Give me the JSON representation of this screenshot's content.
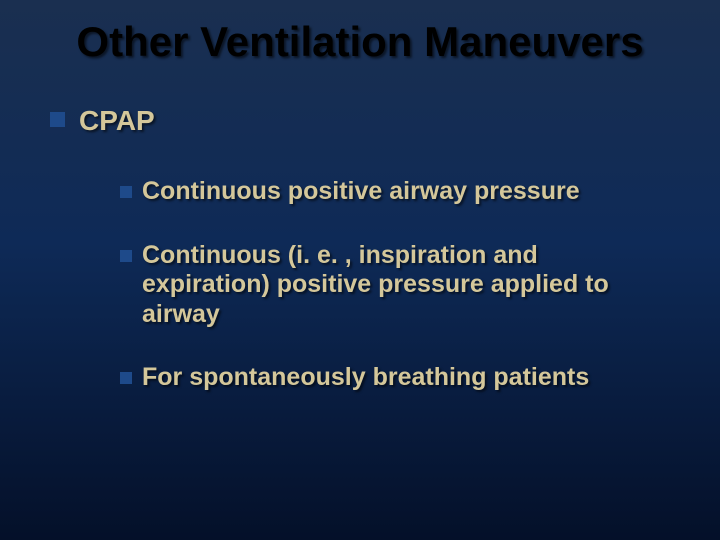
{
  "background": {
    "gradient_top": "#1a2f50",
    "gradient_mid": "#0e2a57",
    "gradient_bottom": "#041029"
  },
  "title": {
    "text": "Other Ventilation Maneuvers",
    "color": "#000000",
    "fontsize": 42
  },
  "bullet_colors": {
    "level1": "#1e4a8a",
    "level2": "#1e4a8a"
  },
  "text_colors": {
    "level1": "#d4c79a",
    "level2": "#d4c79a"
  },
  "font_sizes": {
    "level1": 28,
    "level2": 25
  },
  "bullet_sizes": {
    "level1": 15,
    "level2": 12
  },
  "items": {
    "l1": "CPAP",
    "sub1": "Continuous positive airway pressure",
    "sub2": "Continuous (i. e. , inspiration and expiration) positive pressure applied to airway",
    "sub3": "For spontaneously breathing patients"
  }
}
